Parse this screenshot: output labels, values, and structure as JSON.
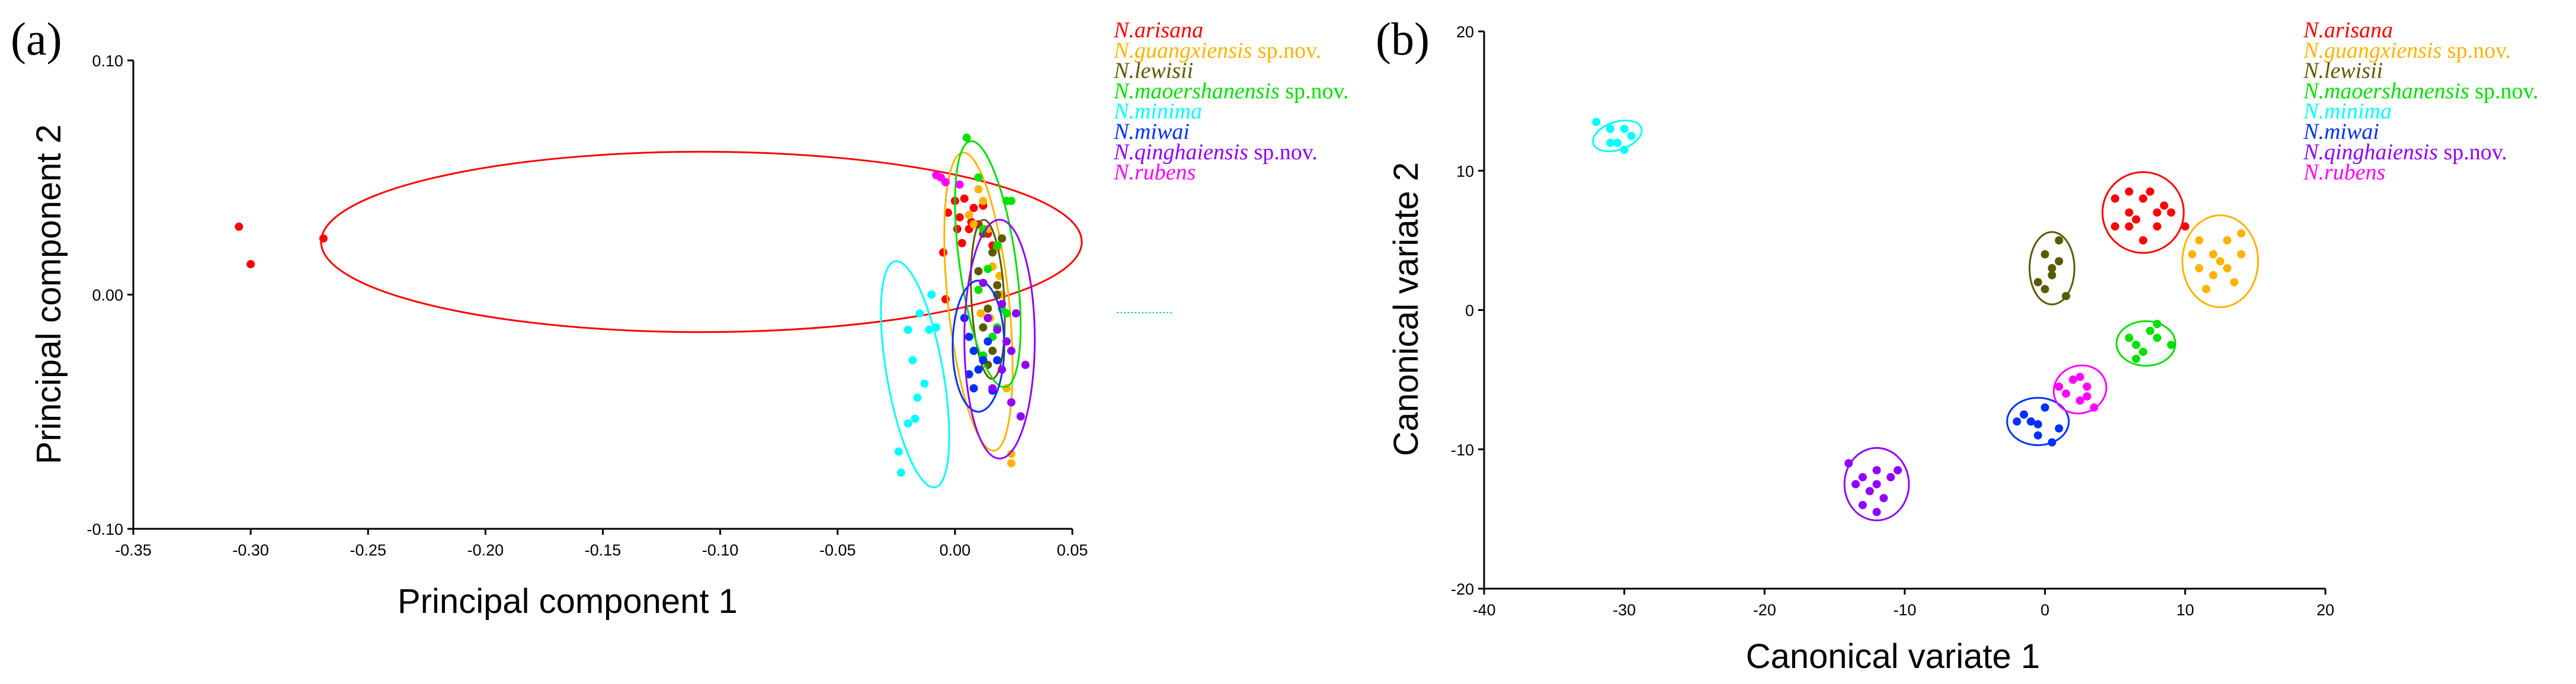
{
  "colors": {
    "arisana": "#ff0000",
    "guangxiensis": "#ffb300",
    "lewisii": "#5a5a00",
    "maoershanensis": "#00e000",
    "minima": "#00ffff",
    "miwai": "#0030ff",
    "qinghaiensis": "#9000ff",
    "rubens": "#ff00ff"
  },
  "legend": [
    {
      "key": "arisana",
      "species": "N.arisana",
      "suffix": ""
    },
    {
      "key": "guangxiensis",
      "species": "N.guangxiensis",
      "suffix": " sp.nov."
    },
    {
      "key": "lewisii",
      "species": "N.lewisii",
      "suffix": ""
    },
    {
      "key": "maoershanensis",
      "species": "N.maoershanensis",
      "suffix": " sp.nov."
    },
    {
      "key": "minima",
      "species": "N.minima",
      "suffix": ""
    },
    {
      "key": "miwai",
      "species": "N.miwai",
      "suffix": ""
    },
    {
      "key": "qinghaiensis",
      "species": "N.qinghaiensis",
      "suffix": " sp.nov."
    },
    {
      "key": "rubens",
      "species": "N.rubens",
      "suffix": ""
    }
  ],
  "chart_data": [
    {
      "panel": "(a)",
      "type": "scatter",
      "xlabel": "Principal component 1",
      "ylabel": "Principal component 2",
      "xlim": [
        -0.35,
        0.05
      ],
      "ylim": [
        -0.1,
        0.1
      ],
      "xticks": [
        -0.35,
        -0.3,
        -0.25,
        -0.2,
        -0.15,
        -0.1,
        -0.05,
        0.0,
        0.05
      ],
      "xtick_labels": [
        "-0.35",
        "-0.30",
        "-0.25",
        "-0.20",
        "-0.15",
        "-0.10",
        "-0.05",
        "0.00",
        "0.05"
      ],
      "yticks": [
        -0.1,
        0.0,
        0.1
      ],
      "ytick_labels": [
        "-0.10",
        "0.00",
        "0.10"
      ],
      "legend_position": "right",
      "grid": false,
      "series": [
        {
          "key": "arisana",
          "name": "N.arisana",
          "ellipse": {
            "cx": -0.108,
            "cy": 0.0225,
            "rx": 0.162,
            "ry": 0.0385,
            "angle_deg": 0
          },
          "points": [
            [
              -0.305,
              0.029
            ],
            [
              -0.3,
              0.013
            ],
            [
              -0.269,
              0.024
            ],
            [
              -0.005,
              0.018
            ],
            [
              -0.003,
              0.035
            ],
            [
              0.0,
              0.04
            ],
            [
              0.002,
              0.033
            ],
            [
              0.004,
              0.041
            ],
            [
              0.006,
              0.028
            ],
            [
              0.008,
              0.037
            ],
            [
              0.01,
              0.03
            ],
            [
              0.012,
              0.038
            ],
            [
              0.014,
              0.026
            ],
            [
              0.003,
              0.022
            ],
            [
              0.001,
              0.028
            ],
            [
              -0.004,
              -0.002
            ],
            [
              0.007,
              0.031
            ],
            [
              0.016,
              0.021
            ]
          ]
        },
        {
          "key": "guangxiensis",
          "name": "N.guangxiensis sp.nov.",
          "ellipse": {
            "cx": 0.01,
            "cy": -0.003,
            "rx": 0.013,
            "ry": 0.064,
            "angle_deg": -6
          },
          "points": [
            [
              0.01,
              0.045
            ],
            [
              0.012,
              0.04
            ],
            [
              0.006,
              0.034
            ],
            [
              0.014,
              0.028
            ],
            [
              0.018,
              0.02
            ],
            [
              0.016,
              0.012
            ],
            [
              0.02,
              0.0
            ],
            [
              0.015,
              -0.01
            ],
            [
              0.022,
              -0.04
            ],
            [
              0.024,
              -0.068
            ],
            [
              0.024,
              -0.072
            ],
            [
              0.008,
              0.03
            ],
            [
              0.011,
              -0.008
            ],
            [
              0.019,
              0.008
            ]
          ]
        },
        {
          "key": "lewisii",
          "name": "N.lewisii",
          "ellipse": {
            "cx": 0.014,
            "cy": -0.002,
            "rx": 0.007,
            "ry": 0.034,
            "angle_deg": -3
          },
          "points": [
            [
              0.012,
              0.026
            ],
            [
              0.016,
              0.018
            ],
            [
              0.01,
              0.01
            ],
            [
              0.018,
              0.004
            ],
            [
              0.014,
              -0.006
            ],
            [
              0.012,
              -0.014
            ],
            [
              0.016,
              -0.024
            ],
            [
              0.014,
              -0.03
            ],
            [
              0.02,
              0.024
            ],
            [
              0.018,
              0.0
            ]
          ]
        },
        {
          "key": "maoershanensis",
          "name": "N.maoershanensis sp.nov.",
          "ellipse": {
            "cx": 0.014,
            "cy": 0.013,
            "rx": 0.012,
            "ry": 0.053,
            "angle_deg": -8
          },
          "points": [
            [
              0.005,
              0.067
            ],
            [
              0.01,
              0.05
            ],
            [
              0.022,
              0.04
            ],
            [
              0.024,
              0.04
            ],
            [
              0.012,
              0.028
            ],
            [
              0.018,
              0.021
            ],
            [
              0.014,
              0.011
            ],
            [
              0.01,
              0.002
            ],
            [
              0.02,
              -0.006
            ],
            [
              0.016,
              -0.018
            ],
            [
              0.012,
              -0.026
            ],
            [
              0.022,
              -0.008
            ],
            [
              0.018,
              -0.014
            ]
          ]
        },
        {
          "key": "minima",
          "name": "N.minima",
          "ellipse": {
            "cx": -0.017,
            "cy": -0.034,
            "rx": 0.012,
            "ry": 0.049,
            "angle_deg": -10
          },
          "points": [
            [
              -0.024,
              -0.067
            ],
            [
              -0.023,
              -0.076
            ],
            [
              -0.02,
              -0.055
            ],
            [
              -0.018,
              -0.028
            ],
            [
              -0.02,
              -0.015
            ],
            [
              -0.015,
              -0.008
            ],
            [
              -0.011,
              -0.015
            ],
            [
              -0.013,
              -0.038
            ],
            [
              -0.016,
              -0.044
            ],
            [
              -0.017,
              -0.053
            ],
            [
              -0.008,
              -0.014
            ],
            [
              -0.01,
              0.0
            ]
          ]
        },
        {
          "key": "miwai",
          "name": "N.miwai",
          "ellipse": {
            "cx": 0.01,
            "cy": -0.022,
            "rx": 0.011,
            "ry": 0.028,
            "angle_deg": 0
          },
          "points": [
            [
              0.004,
              -0.01
            ],
            [
              0.006,
              -0.018
            ],
            [
              0.008,
              -0.024
            ],
            [
              0.012,
              -0.028
            ],
            [
              0.01,
              -0.032
            ],
            [
              0.014,
              -0.02
            ],
            [
              0.008,
              -0.04
            ],
            [
              0.016,
              -0.041
            ],
            [
              0.018,
              -0.028
            ],
            [
              0.006,
              -0.034
            ]
          ]
        },
        {
          "key": "qinghaiensis",
          "name": "N.qinghaiensis sp.nov.",
          "ellipse": {
            "cx": 0.019,
            "cy": -0.019,
            "rx": 0.015,
            "ry": 0.051,
            "angle_deg": 0
          },
          "points": [
            [
              0.012,
              0.005
            ],
            [
              0.014,
              -0.01
            ],
            [
              0.018,
              -0.015
            ],
            [
              0.022,
              -0.02
            ],
            [
              0.02,
              -0.032
            ],
            [
              0.016,
              -0.04
            ],
            [
              0.024,
              -0.046
            ],
            [
              0.028,
              -0.052
            ],
            [
              0.03,
              -0.03
            ],
            [
              0.026,
              -0.008
            ],
            [
              0.02,
              -0.004
            ],
            [
              0.024,
              -0.024
            ]
          ]
        },
        {
          "key": "rubens",
          "name": "N.rubens",
          "ellipse": null,
          "points": [
            [
              -0.008,
              0.051
            ],
            [
              -0.006,
              0.05
            ],
            [
              -0.004,
              0.048
            ],
            [
              0.002,
              0.047
            ]
          ]
        }
      ]
    },
    {
      "panel": "(b)",
      "type": "scatter",
      "xlabel": "Canonical variate 1",
      "ylabel": "Canonical variate 2",
      "xlim": [
        -40,
        20
      ],
      "ylim": [
        -20,
        20
      ],
      "xticks": [
        -40,
        -30,
        -20,
        -10,
        0,
        10,
        20
      ],
      "xtick_labels": [
        "-40",
        "-30",
        "-20",
        "-10",
        "0",
        "10",
        "20"
      ],
      "yticks": [
        -20,
        -10,
        0,
        10,
        20
      ],
      "ytick_labels": [
        "-20",
        "-10",
        "0",
        "10",
        "20"
      ],
      "legend_position": "top-right",
      "grid": false,
      "series": [
        {
          "key": "arisana",
          "name": "N.arisana",
          "ellipse": {
            "cx": 7,
            "cy": 7,
            "rx": 2.9,
            "ry": 2.9,
            "angle_deg": 0
          },
          "points": [
            [
              5,
              8
            ],
            [
              6,
              7
            ],
            [
              7,
              8
            ],
            [
              8,
              7
            ],
            [
              9,
              7
            ],
            [
              5,
              6
            ],
            [
              6,
              6
            ],
            [
              7,
              5
            ],
            [
              8,
              6
            ],
            [
              6,
              8.5
            ],
            [
              7.5,
              8.5
            ],
            [
              10,
              6
            ],
            [
              8.5,
              7.5
            ],
            [
              6.5,
              6.5
            ]
          ]
        },
        {
          "key": "guangxiensis",
          "name": "N.guangxiensis sp.nov.",
          "ellipse": {
            "cx": 12.5,
            "cy": 3.5,
            "rx": 2.7,
            "ry": 3.3,
            "angle_deg": 0
          },
          "points": [
            [
              11,
              5
            ],
            [
              12,
              4
            ],
            [
              13,
              5
            ],
            [
              14,
              4
            ],
            [
              11,
              3
            ],
            [
              12,
              2.5
            ],
            [
              13,
              3
            ],
            [
              11.5,
              1.5
            ],
            [
              14,
              5.5
            ],
            [
              12.5,
              3.5
            ],
            [
              10.5,
              4
            ],
            [
              13.5,
              2
            ]
          ]
        },
        {
          "key": "lewisii",
          "name": "N.lewisii",
          "ellipse": {
            "cx": 0.5,
            "cy": 3,
            "rx": 1.6,
            "ry": 2.6,
            "angle_deg": 0
          },
          "points": [
            [
              0,
              4
            ],
            [
              1,
              5
            ],
            [
              0.5,
              3
            ],
            [
              -0.5,
              2
            ],
            [
              1.5,
              1
            ],
            [
              0,
              1.5
            ],
            [
              1,
              3.5
            ],
            [
              0.5,
              2.5
            ]
          ]
        },
        {
          "key": "maoershanensis",
          "name": "N.maoershanensis sp.nov.",
          "ellipse": {
            "cx": 7.2,
            "cy": -2.4,
            "rx": 2.1,
            "ry": 1.6,
            "angle_deg": 0
          },
          "points": [
            [
              6,
              -2
            ],
            [
              7,
              -3
            ],
            [
              8,
              -2
            ],
            [
              9,
              -2.5
            ],
            [
              7.5,
              -1.5
            ],
            [
              6.5,
              -3.5
            ],
            [
              8,
              -1
            ],
            [
              6.5,
              -2.5
            ]
          ]
        },
        {
          "key": "minima",
          "name": "N.minima",
          "ellipse": {
            "cx": -30.5,
            "cy": 12.5,
            "rx": 1.8,
            "ry": 1.0,
            "angle_deg": -18
          },
          "points": [
            [
              -32,
              13.5
            ],
            [
              -31,
              13
            ],
            [
              -30,
              13
            ],
            [
              -31,
              12
            ],
            [
              -30,
              11.5
            ],
            [
              -29.5,
              12.5
            ],
            [
              -30.5,
              12
            ]
          ]
        },
        {
          "key": "miwai",
          "name": "N.miwai",
          "ellipse": {
            "cx": -0.5,
            "cy": -8,
            "rx": 2.2,
            "ry": 1.7,
            "angle_deg": 0
          },
          "points": [
            [
              -2,
              -8
            ],
            [
              -1,
              -8
            ],
            [
              0,
              -7
            ],
            [
              -0.5,
              -9
            ],
            [
              1,
              -8.5
            ],
            [
              -1.5,
              -7.5
            ],
            [
              0.5,
              -9.5
            ],
            [
              -0.5,
              -8.2
            ]
          ]
        },
        {
          "key": "qinghaiensis",
          "name": "N.qinghaiensis sp.nov.",
          "ellipse": {
            "cx": -12,
            "cy": -12.5,
            "rx": 2.3,
            "ry": 2.6,
            "angle_deg": 0
          },
          "points": [
            [
              -14,
              -11
            ],
            [
              -13,
              -12
            ],
            [
              -12,
              -11.5
            ],
            [
              -11,
              -12
            ],
            [
              -12.5,
              -13
            ],
            [
              -11.5,
              -13.5
            ],
            [
              -13,
              -14
            ],
            [
              -12,
              -14.5
            ],
            [
              -10.5,
              -11.5
            ],
            [
              -12,
              -12.5
            ],
            [
              -13.5,
              -12.5
            ]
          ]
        },
        {
          "key": "rubens",
          "name": "N.rubens",
          "ellipse": {
            "cx": 2.5,
            "cy": -5.7,
            "rx": 1.9,
            "ry": 1.7,
            "angle_deg": -20
          },
          "points": [
            [
              1,
              -5.5
            ],
            [
              2,
              -5
            ],
            [
              3,
              -5.5
            ],
            [
              2.5,
              -6.5
            ],
            [
              3.5,
              -7
            ],
            [
              1.5,
              -6
            ],
            [
              2.5,
              -4.8
            ],
            [
              3,
              -6.2
            ]
          ]
        }
      ]
    }
  ]
}
